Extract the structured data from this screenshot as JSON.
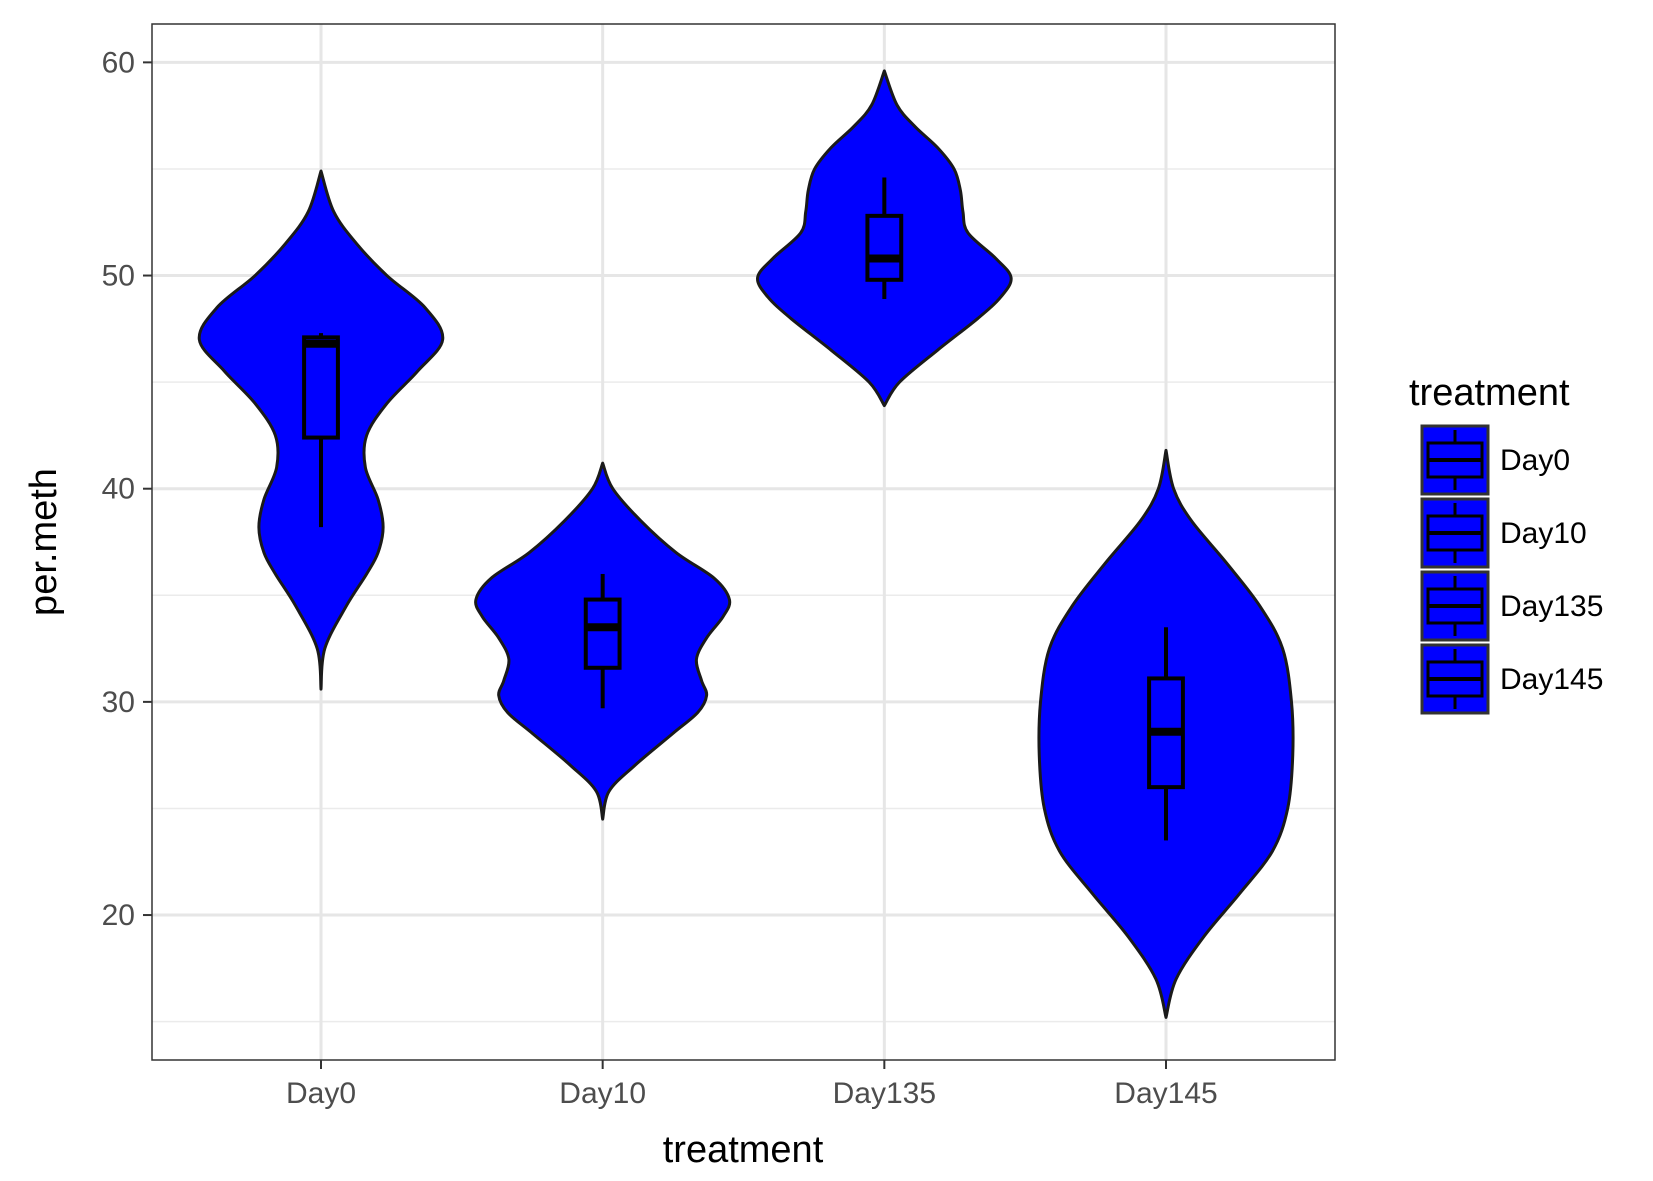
{
  "chart_data": {
    "type": "violin",
    "title": "",
    "xlabel": "treatment",
    "ylabel": "per.meth",
    "ylim": [
      13.2,
      61.8
    ],
    "y_ticks": [
      20,
      30,
      40,
      50,
      60
    ],
    "y_tick_labels": [
      "20",
      "30",
      "40",
      "50",
      "60"
    ],
    "categories": [
      "Day0",
      "Day10",
      "Day135",
      "Day145"
    ],
    "grid": true,
    "fill_color": "#0000ff",
    "outline_color": "#1a1a1a",
    "legend": {
      "title": "treatment",
      "placement": "right",
      "entries": [
        "Day0",
        "Day10",
        "Day135",
        "Day145"
      ]
    },
    "series": [
      {
        "category": "Day0",
        "box": {
          "min": 38.2,
          "q1": 42.4,
          "median": 46.8,
          "q3": 47.1,
          "max": 47.3
        },
        "density": [
          [
            30.6,
            0.0
          ],
          [
            32.5,
            0.03
          ],
          [
            34.5,
            0.2
          ],
          [
            36.0,
            0.36
          ],
          [
            37.0,
            0.45
          ],
          [
            38.2,
            0.49
          ],
          [
            39.5,
            0.45
          ],
          [
            41.0,
            0.35
          ],
          [
            42.5,
            0.36
          ],
          [
            44.0,
            0.52
          ],
          [
            45.5,
            0.76
          ],
          [
            47.0,
            0.96
          ],
          [
            48.5,
            0.82
          ],
          [
            50.0,
            0.52
          ],
          [
            51.5,
            0.28
          ],
          [
            53.0,
            0.1
          ],
          [
            54.9,
            0.0
          ]
        ]
      },
      {
        "category": "Day10",
        "box": {
          "min": 29.7,
          "q1": 31.6,
          "median": 33.5,
          "q3": 34.8,
          "max": 36.0
        },
        "density": [
          [
            24.5,
            0.0
          ],
          [
            25.8,
            0.05
          ],
          [
            27.0,
            0.25
          ],
          [
            28.5,
            0.55
          ],
          [
            29.5,
            0.75
          ],
          [
            30.3,
            0.82
          ],
          [
            31.0,
            0.78
          ],
          [
            32.0,
            0.74
          ],
          [
            33.0,
            0.82
          ],
          [
            34.0,
            0.95
          ],
          [
            34.8,
            1.0
          ],
          [
            35.8,
            0.88
          ],
          [
            37.0,
            0.58
          ],
          [
            38.5,
            0.3
          ],
          [
            40.0,
            0.08
          ],
          [
            41.2,
            0.0
          ]
        ]
      },
      {
        "category": "Day135",
        "box": {
          "min": 48.9,
          "q1": 49.8,
          "median": 50.8,
          "q3": 52.8,
          "max": 54.6
        },
        "density": [
          [
            43.9,
            0.0
          ],
          [
            45.0,
            0.12
          ],
          [
            46.5,
            0.42
          ],
          [
            48.0,
            0.74
          ],
          [
            49.0,
            0.92
          ],
          [
            49.9,
            1.0
          ],
          [
            50.8,
            0.88
          ],
          [
            52.0,
            0.66
          ],
          [
            53.0,
            0.62
          ],
          [
            54.0,
            0.6
          ],
          [
            55.0,
            0.55
          ],
          [
            56.0,
            0.42
          ],
          [
            57.0,
            0.24
          ],
          [
            58.0,
            0.1
          ],
          [
            59.6,
            0.0
          ]
        ]
      },
      {
        "category": "Day145",
        "box": {
          "min": 23.5,
          "q1": 26.0,
          "median": 28.6,
          "q3": 31.1,
          "max": 33.5
        },
        "density": [
          [
            15.2,
            0.0
          ],
          [
            17.0,
            0.08
          ],
          [
            19.0,
            0.3
          ],
          [
            21.0,
            0.58
          ],
          [
            23.0,
            0.84
          ],
          [
            25.0,
            0.96
          ],
          [
            27.5,
            1.0
          ],
          [
            30.0,
            0.99
          ],
          [
            32.5,
            0.92
          ],
          [
            34.5,
            0.74
          ],
          [
            36.5,
            0.48
          ],
          [
            38.5,
            0.2
          ],
          [
            40.0,
            0.06
          ],
          [
            41.8,
            0.0
          ]
        ]
      }
    ]
  }
}
